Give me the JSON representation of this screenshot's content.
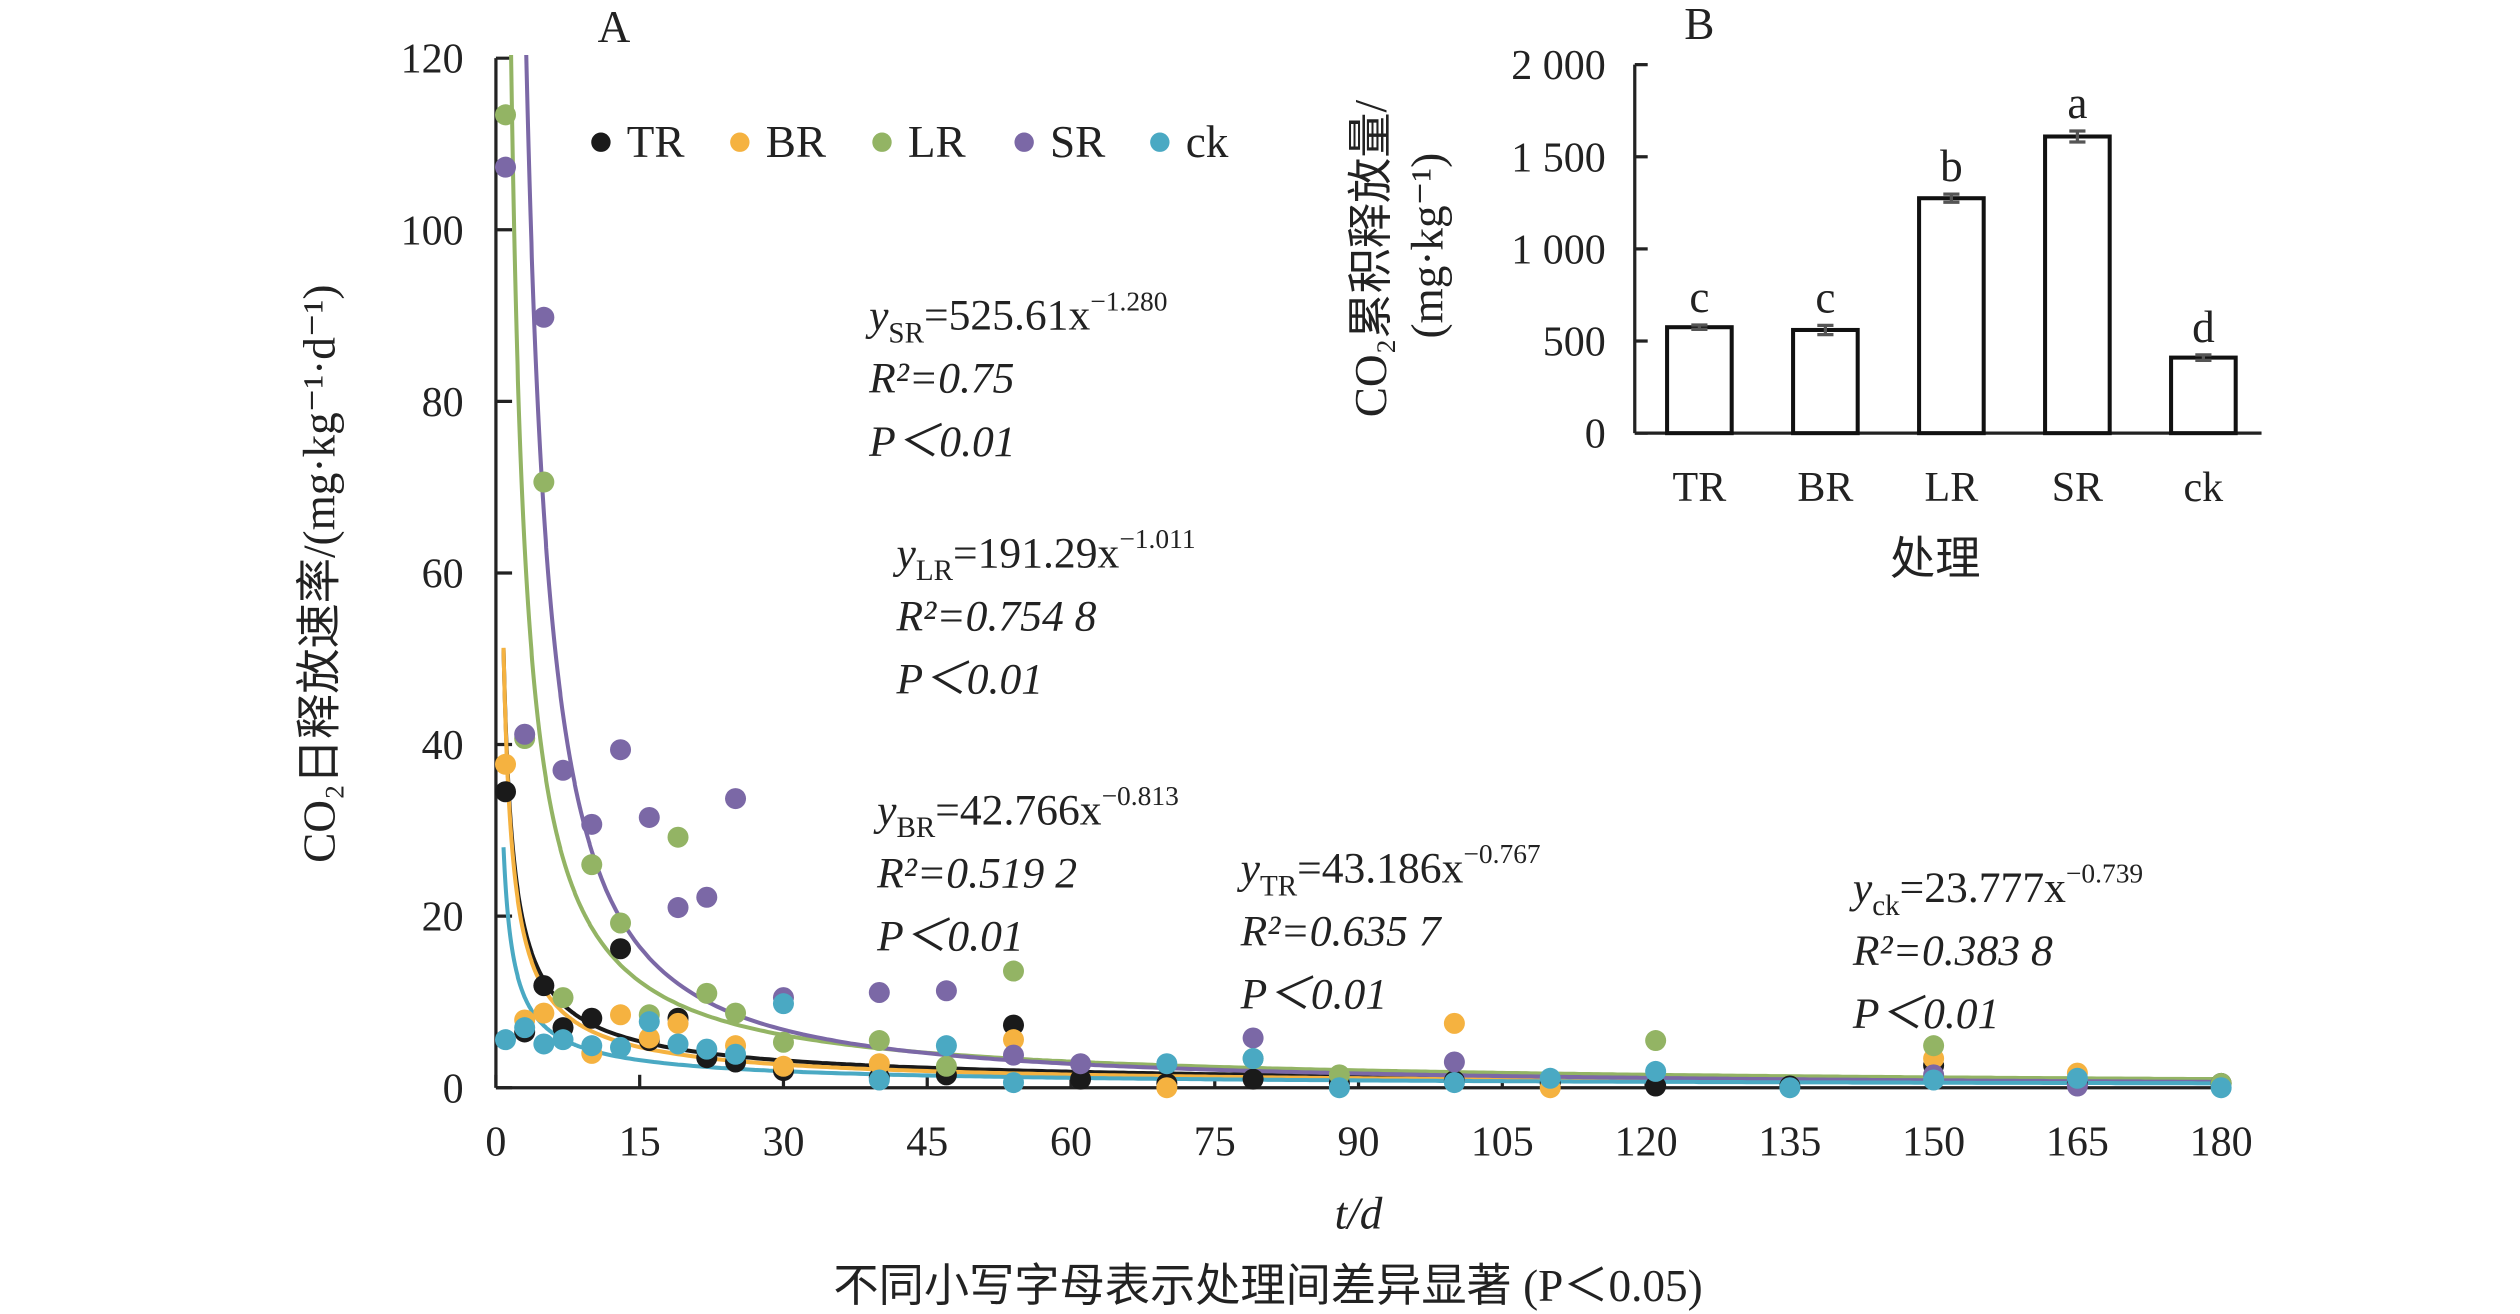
{
  "chart_data": [
    {
      "panel": "A",
      "type": "scatter",
      "xlabel": "t/d",
      "ylabel": "CO₂日释放速率/(mg·kg⁻¹·d⁻¹)",
      "xlim": [
        0,
        180
      ],
      "ylim": [
        0,
        120
      ],
      "xticks": [
        "0",
        "15",
        "30",
        "45",
        "60",
        "75",
        "90",
        "105",
        "120",
        "135",
        "150",
        "165",
        "180"
      ],
      "yticks": [
        "0",
        "20",
        "40",
        "60",
        "80",
        "100",
        "120"
      ],
      "legend_position": "top",
      "grid": false,
      "series": [
        {
          "name": "TR",
          "color": "#1a1a1a",
          "x": [
            1,
            3,
            5,
            7,
            10,
            13,
            16,
            19,
            22,
            25,
            30,
            40,
            47,
            54,
            61,
            70,
            79,
            88,
            100,
            110,
            121,
            135,
            150,
            165,
            180
          ],
          "y": [
            34.5,
            6.5,
            11.9,
            7.0,
            8.1,
            16.2,
            5.5,
            8.1,
            3.5,
            3.0,
            2.0,
            1.2,
            1.5,
            7.3,
            1.0,
            0.5,
            1.0,
            0.5,
            0.8,
            0.5,
            0.2,
            0.2,
            2.6,
            0.5,
            0.5
          ],
          "fit": {
            "a": 43.186,
            "b": -0.767,
            "label": "y",
            "sub": "TR",
            "rhs": "=43.186x",
            "sup": "−0.767",
            "r2": "R²=0.635 7",
            "p": "P＜0.01"
          }
        },
        {
          "name": "BR",
          "color": "#f5b240",
          "x": [
            1,
            3,
            5,
            10,
            13,
            16,
            19,
            25,
            30,
            40,
            54,
            70,
            100,
            110,
            150,
            165
          ],
          "y": [
            37.7,
            7.9,
            8.7,
            4.0,
            8.5,
            5.8,
            7.5,
            4.9,
            2.5,
            2.8,
            5.6,
            0.0,
            7.5,
            0.0,
            3.4,
            1.7
          ],
          "fit": {
            "a": 42.766,
            "b": -0.813,
            "label": "y",
            "sub": "BR",
            "rhs": "=42.766x",
            "sup": "−0.813",
            "r2": "R²=0.519 2",
            "p": "P＜0.01"
          }
        },
        {
          "name": "LR",
          "color": "#93b464",
          "x": [
            1,
            3,
            5,
            7,
            10,
            13,
            16,
            19,
            22,
            25,
            30,
            40,
            47,
            54,
            79,
            88,
            121,
            150,
            180
          ],
          "y": [
            113.4,
            40.7,
            70.6,
            10.5,
            26.0,
            19.2,
            8.5,
            29.2,
            11.0,
            8.7,
            5.3,
            5.5,
            2.5,
            13.6,
            3.4,
            1.5,
            5.5,
            4.9,
            0.5
          ],
          "fit": {
            "a": 191.29,
            "b": -1.011,
            "label": "y",
            "sub": "LR",
            "rhs": "=191.29x",
            "sup": "−1.011",
            "r2": "R²=0.754 8",
            "p": "P＜0.01"
          }
        },
        {
          "name": "SR",
          "color": "#7b68a6",
          "x": [
            1,
            3,
            5,
            7,
            10,
            13,
            16,
            19,
            22,
            25,
            30,
            40,
            47,
            54,
            61,
            79,
            100,
            150,
            165
          ],
          "y": [
            107.3,
            41.2,
            89.8,
            37.0,
            30.7,
            39.4,
            31.5,
            21.0,
            22.2,
            33.7,
            10.5,
            11.1,
            11.3,
            3.8,
            2.8,
            5.8,
            3.0,
            1.5,
            0.2
          ],
          "fit": {
            "a": 525.61,
            "b": -1.28,
            "label": "y",
            "sub": "SR",
            "rhs": "=525.61x",
            "sup": "−1.280",
            "r2": "R²=0.75",
            "p": "P＜0.01"
          }
        },
        {
          "name": "ck",
          "color": "#4aa9c3",
          "x": [
            1,
            3,
            5,
            7,
            10,
            13,
            16,
            19,
            22,
            25,
            30,
            40,
            47,
            54,
            70,
            79,
            88,
            100,
            110,
            121,
            135,
            150,
            165,
            180
          ],
          "y": [
            5.6,
            7.0,
            5.1,
            5.6,
            4.9,
            4.7,
            7.7,
            5.1,
            4.5,
            3.9,
            9.8,
            0.9,
            4.9,
            0.6,
            2.8,
            3.4,
            0.0,
            0.6,
            1.1,
            1.9,
            0.0,
            0.9,
            1.1,
            0.0
          ],
          "fit": {
            "a": 23.777,
            "b": -0.739,
            "label": "y",
            "sub": "ck",
            "rhs": "=23.777x",
            "sup": "−0.739",
            "r2": "R²=0.383 8",
            "p": "P＜0.01"
          }
        }
      ]
    },
    {
      "panel": "B",
      "type": "bar",
      "xlabel": "处理",
      "ylabel_line1": "CO₂累积释放量/",
      "ylabel_line2": "(mg·kg⁻¹)",
      "ylim": [
        0,
        2000
      ],
      "yticks": [
        "0",
        "500",
        "1 000",
        "1 500",
        "2 000"
      ],
      "categories": [
        "TR",
        "BR",
        "LR",
        "SR",
        "ck"
      ],
      "values": [
        575,
        560,
        1275,
        1610,
        410
      ],
      "errors": [
        12,
        25,
        22,
        30,
        15
      ],
      "letters": [
        "c",
        "c",
        "b",
        "a",
        "d"
      ],
      "bar_color": "#ffffff",
      "edge_color": "#111111"
    }
  ],
  "note": "不同小写字母表示处理间差异显著 (P＜0.05)"
}
